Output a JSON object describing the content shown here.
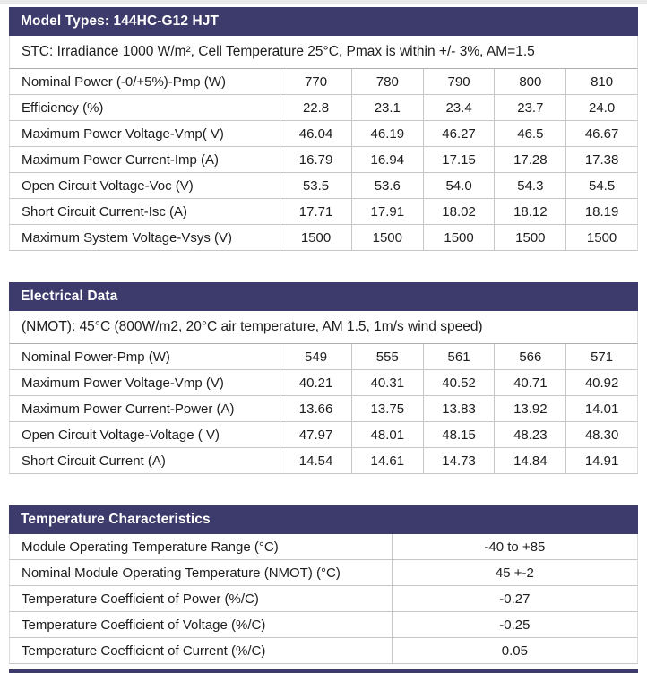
{
  "theme": {
    "header_bg": "#3d3a6c",
    "header_text": "#ffffff",
    "row_border": "#c6c6c6",
    "body_text": "#1d1d1f"
  },
  "tables": [
    {
      "title": "Model Types: 144HC-G12 HJT",
      "subtitle": "STC: Irradiance 1000 W/m², Cell Temperature 25°C, Pmax is within +/- 3%, AM=1.5",
      "rows": [
        {
          "label": "Nominal Power (-0/+5%)-Pmp (W)",
          "values": [
            "770",
            "780",
            "790",
            "800",
            "810"
          ]
        },
        {
          "label": "Efficiency (%)",
          "values": [
            "22.8",
            "23.1",
            "23.4",
            "23.7",
            "24.0"
          ]
        },
        {
          "label": "Maximum Power Voltage-Vmp( V)",
          "values": [
            "46.04",
            "46.19",
            "46.27",
            "46.5",
            "46.67"
          ]
        },
        {
          "label": "Maximum Power Current-Imp (A)",
          "values": [
            "16.79",
            "16.94",
            "17.15",
            "17.28",
            "17.38"
          ]
        },
        {
          "label": "Open Circuit Voltage-Voc (V)",
          "values": [
            "53.5",
            "53.6",
            "54.0",
            "54.3",
            "54.5"
          ]
        },
        {
          "label": "Short Circuit Current-Isc (A)",
          "values": [
            "17.71",
            "17.91",
            "18.02",
            "18.12",
            "18.19"
          ]
        },
        {
          "label": "Maximum System Voltage-Vsys (V)",
          "values": [
            "1500",
            "1500",
            "1500",
            "1500",
            "1500"
          ]
        }
      ]
    },
    {
      "title": "Electrical Data",
      "subtitle": "(NMOT): 45°C (800W/m2, 20°C air temperature, AM 1.5, 1m/s wind speed)",
      "rows": [
        {
          "label": "Nominal Power-Pmp (W)",
          "values": [
            "549",
            "555",
            "561",
            "566",
            "571"
          ]
        },
        {
          "label": "Maximum Power Voltage-Vmp (V)",
          "values": [
            "40.21",
            "40.31",
            "40.52",
            "40.71",
            "40.92"
          ]
        },
        {
          "label": "Maximum Power Current-Power (A)",
          "values": [
            "13.66",
            "13.75",
            "13.83",
            "13.92",
            "14.01"
          ]
        },
        {
          "label": "Open Circuit Voltage-Voltage ( V)",
          "values": [
            "47.97",
            "48.01",
            "48.15",
            "48.23",
            "48.30"
          ]
        },
        {
          "label": "Short Circuit Current (A)",
          "values": [
            "14.54",
            "14.61",
            "14.73",
            "14.84",
            "14.91"
          ]
        }
      ]
    },
    {
      "title": "Temperature Characteristics",
      "rows": [
        {
          "label": "Module Operating Temperature Range (°C)",
          "values": [
            "-40 to +85"
          ]
        },
        {
          "label": "Nominal Module Operating Temperature (NMOT) (°C)",
          "values": [
            "45 +-2"
          ]
        },
        {
          "label": "Temperature Coefficient of Power (%/C)",
          "values": [
            "-0.27"
          ]
        },
        {
          "label": "Temperature Coefficient of Voltage (%/C)",
          "values": [
            "-0.25"
          ]
        },
        {
          "label": "Temperature Coefficient of Current (%/C)",
          "values": [
            "0.05"
          ]
        }
      ]
    }
  ]
}
